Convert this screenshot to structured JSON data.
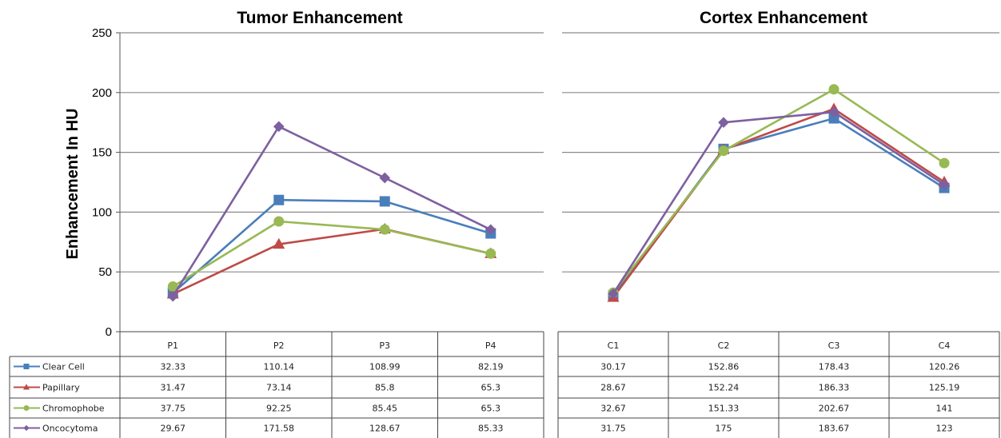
{
  "chart_data": [
    {
      "type": "line",
      "title": "Tumor Enhancement",
      "ylabel": "Enhancement In HU",
      "ylim": [
        0,
        250
      ],
      "yticks": [
        0,
        50,
        100,
        150,
        200,
        250
      ],
      "categories": [
        "P1",
        "P2",
        "P3",
        "P4"
      ],
      "grid": true,
      "legend": "data-table",
      "series": [
        {
          "name": "Clear Cell",
          "color": "#4a7ebb",
          "marker": "square",
          "values": [
            32.33,
            110.14,
            108.99,
            82.19
          ],
          "labels": [
            "32.33",
            "110.14",
            "108.99",
            "82.19"
          ]
        },
        {
          "name": "Papillary",
          "color": "#be4b48",
          "marker": "triangle",
          "values": [
            31.47,
            73.14,
            85.8,
            65.3
          ],
          "labels": [
            "31.47",
            "73.14",
            "85.8",
            "65.3"
          ]
        },
        {
          "name": "Chromophobe",
          "color": "#98b954",
          "marker": "circle",
          "values": [
            37.75,
            92.25,
            85.45,
            65.3
          ],
          "labels": [
            "37.75",
            "92.25",
            "85.45",
            "65.3"
          ]
        },
        {
          "name": "Oncocytoma",
          "color": "#7d60a0",
          "marker": "diamond",
          "values": [
            29.67,
            171.58,
            128.67,
            85.33
          ],
          "labels": [
            "29.67",
            "171.58",
            "128.67",
            "85.33"
          ]
        }
      ]
    },
    {
      "type": "line",
      "title": "Cortex Enhancement",
      "ylim": [
        0,
        250
      ],
      "categories": [
        "C1",
        "C2",
        "C3",
        "C4"
      ],
      "grid": true,
      "legend": "none",
      "series": [
        {
          "name": "Clear Cell",
          "color": "#4a7ebb",
          "marker": "square",
          "values": [
            30.17,
            152.86,
            178.43,
            120.26
          ],
          "labels": [
            "30.17",
            "152.86",
            "178.43",
            "120.26"
          ]
        },
        {
          "name": "Papillary",
          "color": "#be4b48",
          "marker": "triangle",
          "values": [
            28.67,
            152.24,
            186.33,
            125.19
          ],
          "labels": [
            "28.67",
            "152.24",
            "186.33",
            "125.19"
          ]
        },
        {
          "name": "Chromophobe",
          "color": "#98b954",
          "marker": "circle",
          "values": [
            32.67,
            151.33,
            202.67,
            141
          ],
          "labels": [
            "32.67",
            "151.33",
            "202.67",
            "141"
          ]
        },
        {
          "name": "Oncocytoma",
          "color": "#7d60a0",
          "marker": "diamond",
          "values": [
            31.75,
            175,
            183.67,
            123
          ],
          "labels": [
            "31.75",
            "175",
            "183.67",
            "123"
          ]
        }
      ]
    }
  ]
}
